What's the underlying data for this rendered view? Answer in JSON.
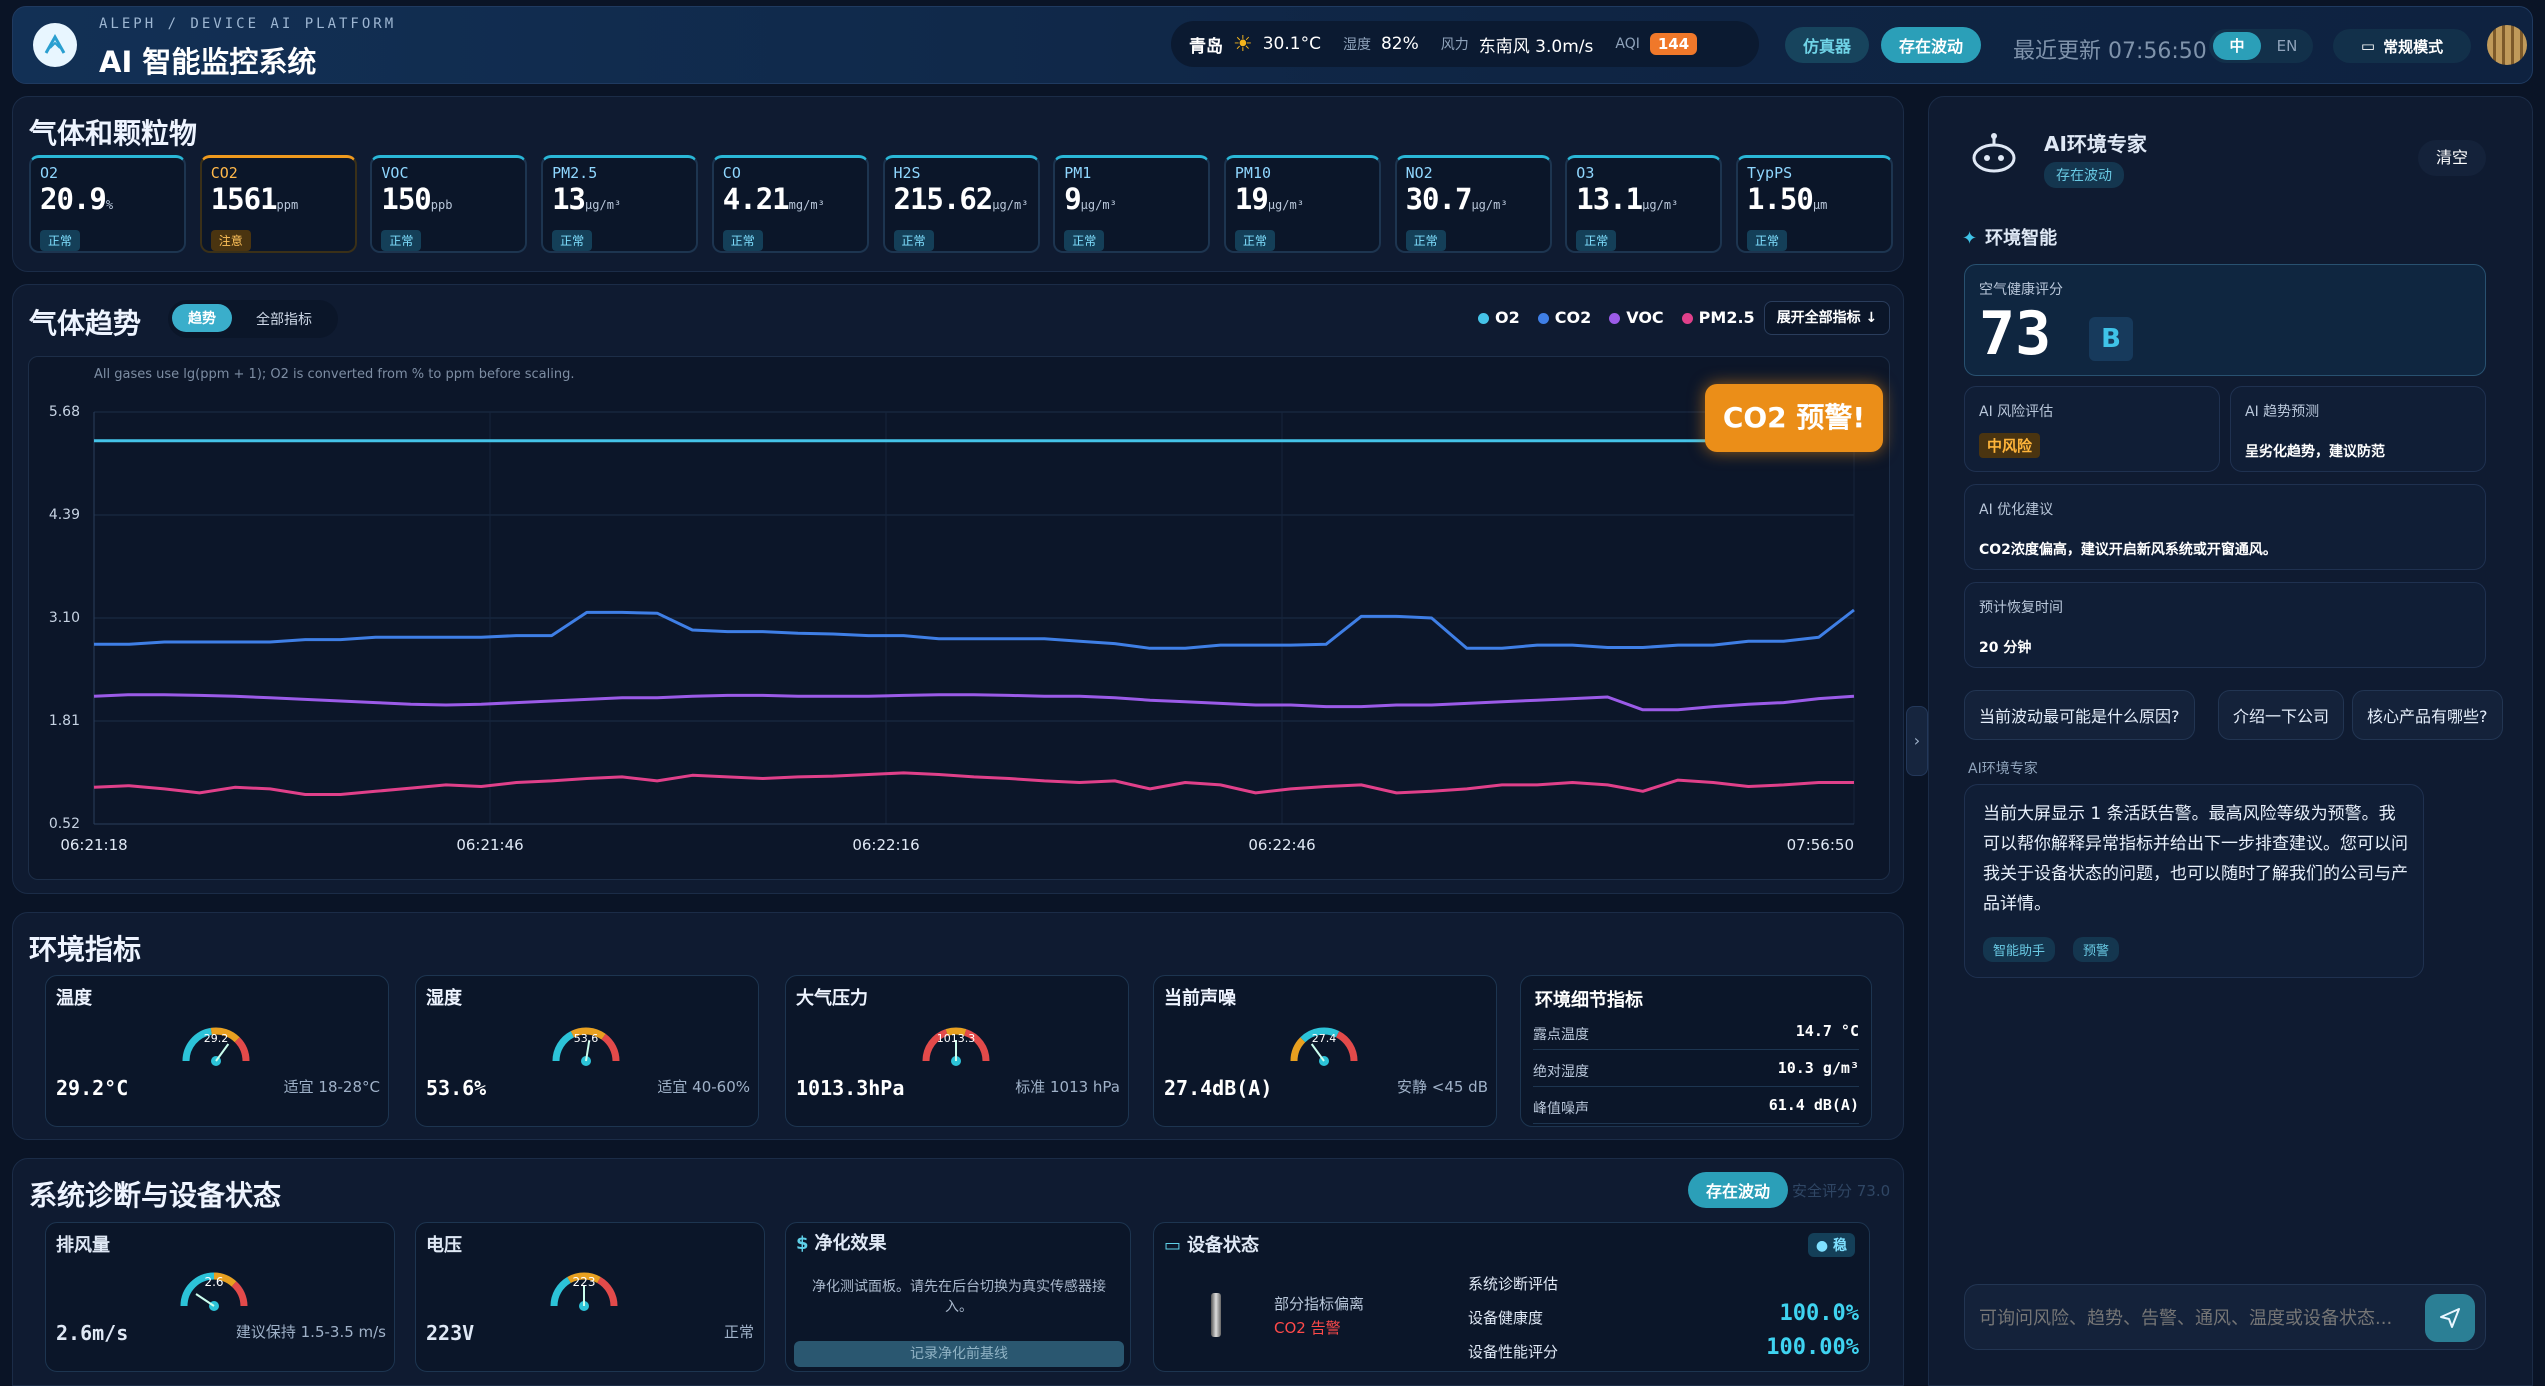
{
  "header": {
    "brand_sub": "ALEPH / DEVICE AI PLATFORM",
    "title": "AI 智能监控系统",
    "weather": {
      "city": "青岛",
      "temp": "30.1°C",
      "humidity_label": "湿度",
      "humidity": "82%",
      "wind_label": "风力",
      "wind": "东南风 3.0m/s",
      "aqi_label": "AQI",
      "aqi": "144"
    },
    "sim_label": "仿真器",
    "fluct_label": "存在波动",
    "last_update": "最近更新 07:56:50",
    "lang_zh": "中",
    "lang_en": "EN",
    "mode_label": "常规模式"
  },
  "gases": {
    "title": "气体和颗粒物",
    "items": [
      {
        "name": "O2",
        "value": "20.9",
        "unit": "%",
        "status": "正常",
        "warn": false
      },
      {
        "name": "CO2",
        "value": "1561",
        "unit": "ppm",
        "status": "注意",
        "warn": true
      },
      {
        "name": "VOC",
        "value": "150",
        "unit": "ppb",
        "status": "正常",
        "warn": false
      },
      {
        "name": "PM2.5",
        "value": "13",
        "unit": "μg/m³",
        "status": "正常",
        "warn": false
      },
      {
        "name": "CO",
        "value": "4.21",
        "unit": "mg/m³",
        "status": "正常",
        "warn": false
      },
      {
        "name": "H2S",
        "value": "215.62",
        "unit": "μg/m³",
        "status": "正常",
        "warn": false
      },
      {
        "name": "PM1",
        "value": "9",
        "unit": "μg/m³",
        "status": "正常",
        "warn": false
      },
      {
        "name": "PM10",
        "value": "19",
        "unit": "μg/m³",
        "status": "正常",
        "warn": false
      },
      {
        "name": "NO2",
        "value": "30.7",
        "unit": "μg/m³",
        "status": "正常",
        "warn": false
      },
      {
        "name": "O3",
        "value": "13.1",
        "unit": "μg/m³",
        "status": "正常",
        "warn": false
      },
      {
        "name": "TypPS",
        "value": "1.50",
        "unit": "μm",
        "status": "正常",
        "warn": false
      }
    ]
  },
  "trend": {
    "title": "气体趋势",
    "tab_trend": "趋势",
    "tab_all": "全部指标",
    "expand_label": "展开全部指标 ↓",
    "note": "All gases use lg(ppm + 1); O2 is converted from % to ppm before scaling.",
    "alert": "CO2 预警!"
  },
  "chart_data": {
    "type": "line",
    "title": "",
    "xlabel": "",
    "ylabel": "",
    "ylim": [
      0.52,
      5.68
    ],
    "yticks": [
      "5.68",
      "4.39",
      "3.10",
      "1.81",
      "0.52"
    ],
    "xticks": [
      "06:21:18",
      "06:21:46",
      "06:22:16",
      "06:22:46",
      "07:56:50"
    ],
    "grid": true,
    "legend_position": "top-right",
    "series": [
      {
        "name": "O2",
        "color": "#45c3e8",
        "values": [
          5.32,
          5.32,
          5.32,
          5.32,
          5.32,
          5.32,
          5.32,
          5.32,
          5.32,
          5.32,
          5.32,
          5.32,
          5.32,
          5.32,
          5.32,
          5.32,
          5.32,
          5.32,
          5.32,
          5.32,
          5.32,
          5.32,
          5.32,
          5.32,
          5.32,
          5.32,
          5.32,
          5.32,
          5.32,
          5.32,
          5.32,
          5.32,
          5.32,
          5.32,
          5.32,
          5.32,
          5.32,
          5.32,
          5.32,
          5.32,
          5.32,
          5.32,
          5.32,
          5.32,
          5.32,
          5.32,
          5.32,
          5.32,
          5.32,
          5.32,
          5.32
        ]
      },
      {
        "name": "CO2",
        "color": "#3f7fe6",
        "values": [
          2.77,
          2.77,
          2.8,
          2.8,
          2.8,
          2.8,
          2.83,
          2.83,
          2.86,
          2.86,
          2.86,
          2.86,
          2.88,
          2.88,
          3.17,
          3.17,
          3.16,
          2.95,
          2.93,
          2.93,
          2.91,
          2.9,
          2.88,
          2.88,
          2.84,
          2.84,
          2.84,
          2.84,
          2.81,
          2.78,
          2.72,
          2.72,
          2.76,
          2.76,
          2.76,
          2.77,
          3.12,
          3.12,
          3.1,
          2.72,
          2.72,
          2.76,
          2.76,
          2.73,
          2.73,
          2.76,
          2.76,
          2.81,
          2.81,
          2.86,
          3.2
        ]
      },
      {
        "name": "VOC",
        "color": "#9b5be8",
        "values": [
          2.12,
          2.14,
          2.14,
          2.13,
          2.12,
          2.1,
          2.08,
          2.06,
          2.04,
          2.02,
          2.01,
          2.02,
          2.04,
          2.06,
          2.08,
          2.1,
          2.1,
          2.12,
          2.13,
          2.13,
          2.12,
          2.12,
          2.12,
          2.13,
          2.14,
          2.14,
          2.13,
          2.12,
          2.12,
          2.1,
          2.07,
          2.05,
          2.03,
          2.01,
          2.01,
          1.99,
          1.99,
          2.01,
          2.01,
          2.03,
          2.05,
          2.07,
          2.09,
          2.11,
          1.95,
          1.95,
          1.99,
          2.02,
          2.04,
          2.09,
          2.12
        ]
      },
      {
        "name": "PM2.5",
        "color": "#e0408a",
        "values": [
          0.98,
          1.0,
          0.96,
          0.91,
          0.98,
          0.96,
          0.89,
          0.89,
          0.93,
          0.97,
          1.01,
          0.99,
          1.04,
          1.06,
          1.09,
          1.11,
          1.06,
          1.13,
          1.11,
          1.09,
          1.11,
          1.12,
          1.14,
          1.16,
          1.14,
          1.11,
          1.09,
          1.06,
          1.04,
          1.06,
          0.96,
          1.04,
          1.01,
          0.91,
          0.96,
          0.99,
          1.01,
          0.91,
          0.93,
          0.96,
          1.01,
          1.01,
          1.04,
          1.01,
          0.93,
          1.07,
          1.04,
          0.99,
          1.01,
          1.04,
          1.04
        ]
      }
    ]
  },
  "env": {
    "title": "环境指标",
    "cards": [
      {
        "title": "温度",
        "value": "29.2°C",
        "note": "适宜 18-28°C",
        "gauge": "29.2"
      },
      {
        "title": "湿度",
        "value": "53.6%",
        "note": "适宜 40-60%",
        "gauge": "53.6"
      },
      {
        "title": "大气压力",
        "value": "1013.3hPa",
        "note": "标准 1013 hPa",
        "gauge": "1013.3"
      },
      {
        "title": "当前声噪",
        "value": "27.4dB(A)",
        "note": "安静 <45 dB",
        "gauge": "27.4"
      }
    ],
    "detail": {
      "title": "环境细节指标",
      "rows": [
        {
          "label": "露点温度",
          "value": "14.7 °C"
        },
        {
          "label": "绝对湿度",
          "value": "10.3 g/m³"
        },
        {
          "label": "峰值噪声",
          "value": "61.4 dB(A)"
        }
      ]
    }
  },
  "system": {
    "title": "系统诊断与设备状态",
    "status_pill": "存在波动",
    "score_text": "安全评分 73.0",
    "exhaust": {
      "title": "排风量",
      "value": "2.6m/s",
      "note": "建议保持 1.5-3.5 m/s",
      "gauge": "2.6"
    },
    "voltage": {
      "title": "电压",
      "value": "223V",
      "note": "正常",
      "gauge": "223"
    },
    "purify": {
      "title": "净化效果",
      "text": "净化测试面板。请先在后台切换为真实传感器接入。",
      "button": "记录净化前基线"
    },
    "device": {
      "title": "设备状态",
      "badge": "稳",
      "partial_label": "部分指标偏离",
      "alarm": "CO2 告警",
      "diag_title": "系统诊断评估",
      "health_label": "设备健康度",
      "health_value": "100.0%",
      "perf_label": "设备性能评分",
      "perf_value": "100.00%"
    }
  },
  "assistant": {
    "name": "AI环境专家",
    "status": "存在波动",
    "clear": "清空",
    "section": "环境智能",
    "score_label": "空气健康评分",
    "score": "73",
    "grade": "B",
    "risk_label": "AI 风险评估",
    "risk_value": "中风险",
    "trend_label": "AI 趋势预测",
    "trend_value": "呈劣化趋势，建议防范",
    "advice_label": "AI 优化建议",
    "advice_value": "CO2浓度偏高，建议开启新风系统或开窗通风。",
    "recover_label": "预计恢复时间",
    "recover_value": "20 分钟",
    "chips": [
      "当前波动最可能是什么原因?",
      "介绍一下公司",
      "核心产品有哪些?"
    ],
    "msg_author": "AI环境专家",
    "msg_text": "当前大屏显示 1 条活跃告警。最高风险等级为预警。我可以帮你解释异常指标并给出下一步排查建议。您可以问我关于设备状态的问题，也可以随时了解我们的公司与产品详情。",
    "tags": [
      "智能助手",
      "预警"
    ],
    "input_placeholder": "可询问风险、趋势、告警、通风、温度或设备状态..."
  }
}
